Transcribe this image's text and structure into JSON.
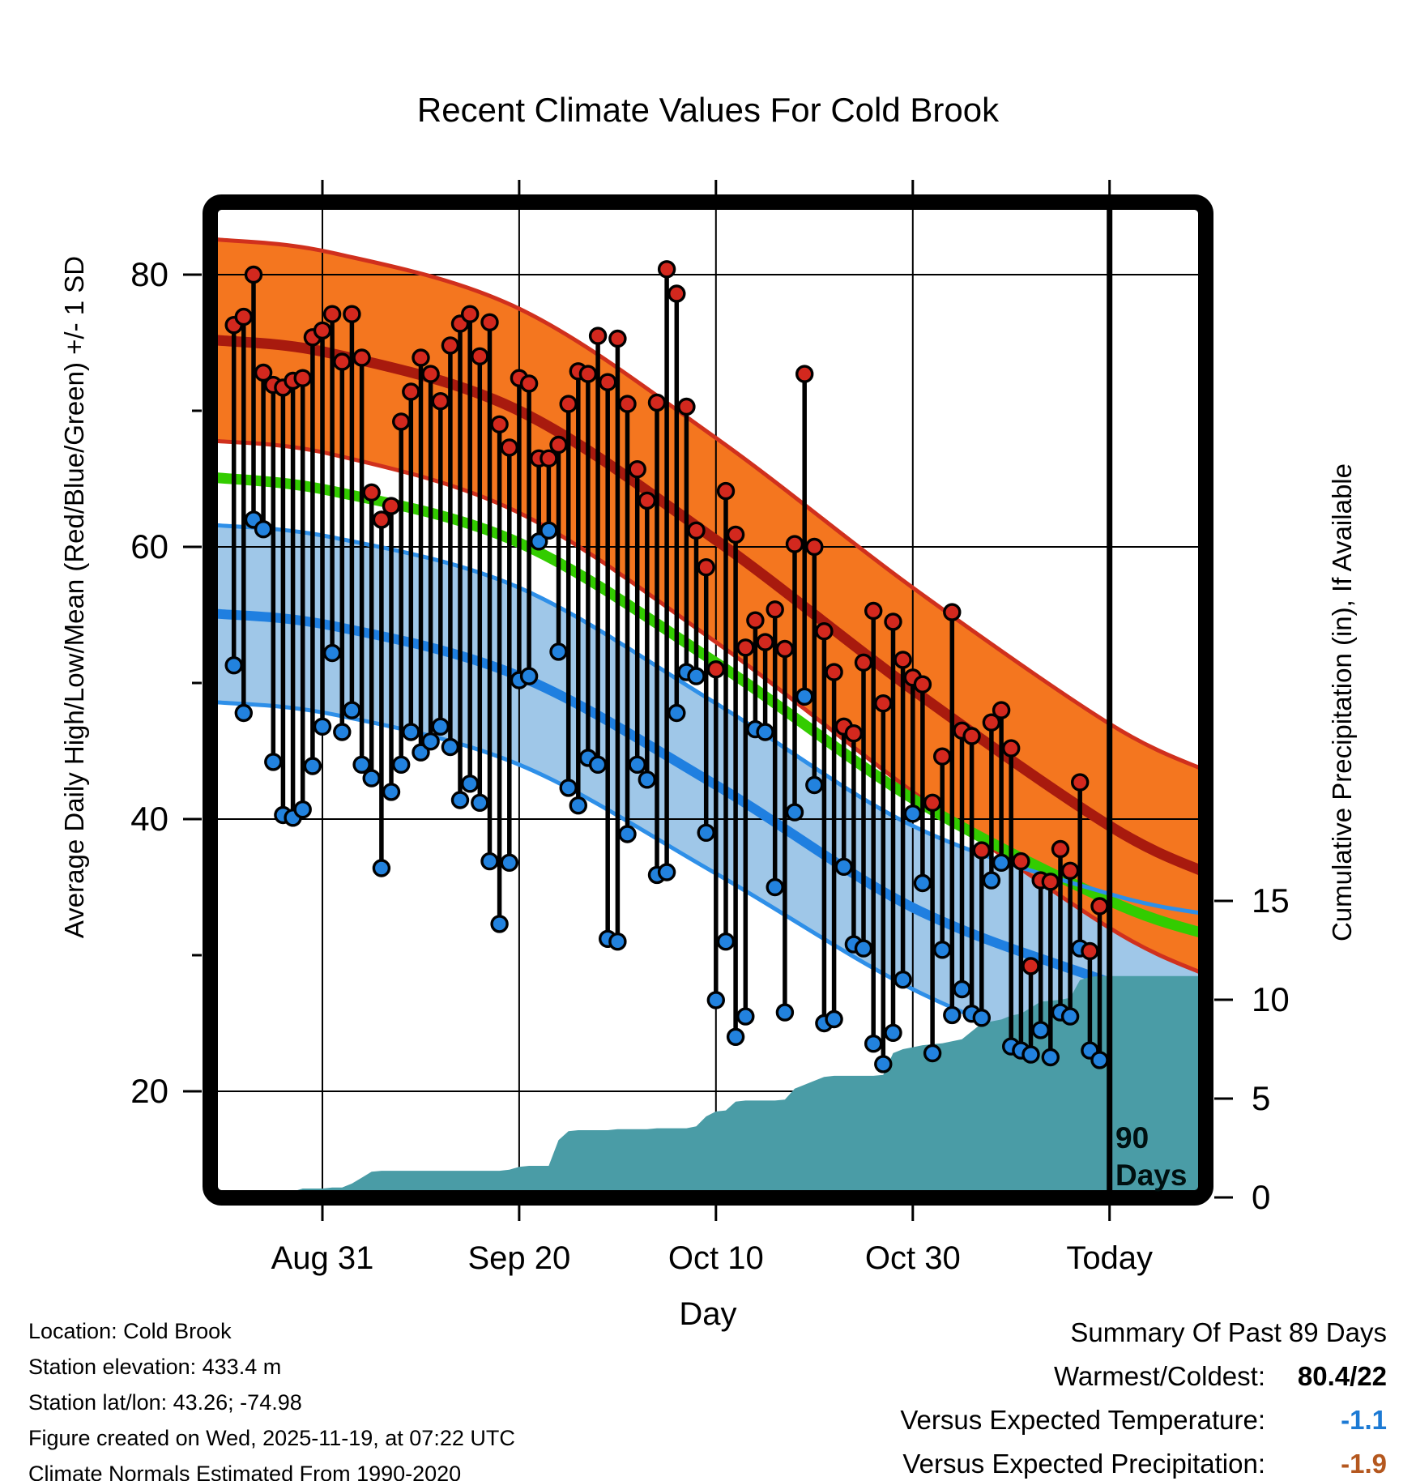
{
  "title": "Recent Climate Values For Cold Brook",
  "axes": {
    "y_left_label": "Average Daily High/Low/Mean (Red/Blue/Green) +/- 1 SD",
    "y_right_label": "Cumulative Precipitation (in), If Available",
    "x_label": "Day"
  },
  "annotation": {
    "line1": "90",
    "line2": "Days"
  },
  "footer": {
    "lines": [
      "Location: Cold Brook",
      "Station elevation: 433.4 m",
      "Station lat/lon: 43.26; -74.98",
      "Figure created on Wed, 2025-11-19, at 07:22 UTC",
      "Climate Normals Estimated From 1990-2020"
    ]
  },
  "summary": {
    "title": "Summary Of Past 89 Days",
    "rows": [
      {
        "label": "Warmest/Coldest:",
        "value": "80.4/22",
        "kind": "bold"
      },
      {
        "label": "Versus Expected Temperature:",
        "value": "-1.1",
        "kind": "temp"
      },
      {
        "label": "Versus Expected Precipitation:",
        "value": "-1.9",
        "kind": "precip"
      }
    ]
  },
  "colors": {
    "high_band": "#F4761F",
    "high_band_edge": "#D0301D",
    "high_mean_line": "#A81A0E",
    "mean_line": "#33CC00",
    "low_band": "#9FC7E8",
    "low_band_edge": "#2E8FE8",
    "low_mean_line": "#1F7FE0",
    "high_dot": "#D3281E",
    "low_dot": "#2282DE",
    "stem": "#000000",
    "precip_area": "#4A9CA6",
    "grid": "#000000",
    "temp_delta_value": "#1C7AD4",
    "precip_delta_value": "#B4571E"
  },
  "chart_data": {
    "type": "line",
    "subtype": "daily-high-low-stems + climate-normal-bands + cumulative-precip-area",
    "title": "Recent Climate Values For Cold Brook",
    "xlabel": "Day",
    "ylabel_left": "Average Daily High/Low/Mean (Red/Blue/Green) +/- 1 SD",
    "ylabel_right": "Cumulative Precipitation (in), If Available",
    "start_date": "2025-08-22",
    "n_days": 89,
    "today_day_index": 89,
    "x_ticks": [
      {
        "label": "Aug 31",
        "day": 9
      },
      {
        "label": "Sep 20",
        "day": 29
      },
      {
        "label": "Oct 10",
        "day": 49
      },
      {
        "label": "Oct 30",
        "day": 69
      },
      {
        "label": "Today",
        "day": 89
      }
    ],
    "y_left_ticks": [
      80,
      60,
      40,
      20
    ],
    "y_left_minor_ticks": [
      70,
      50,
      30
    ],
    "y_left_range": [
      12.7,
      84.8
    ],
    "y_right_ticks": [
      15,
      10,
      5,
      0
    ],
    "grid": true,
    "normals": {
      "days": [
        -2,
        10,
        29,
        49,
        69,
        89,
        99
      ],
      "high_upper": [
        82.6,
        81.6,
        77.5,
        68.0,
        57.0,
        47.0,
        43.5
      ],
      "high_mean": [
        75.2,
        74.2,
        70.0,
        60.5,
        49.5,
        39.5,
        36.0
      ],
      "high_lower": [
        67.8,
        66.8,
        62.5,
        53.0,
        42.0,
        32.0,
        28.5
      ],
      "mean": [
        65.1,
        64.1,
        60.3,
        51.5,
        41.5,
        34.0,
        31.5
      ],
      "low_upper": [
        61.6,
        60.7,
        57.0,
        48.5,
        39.5,
        34.5,
        33.0
      ],
      "low_mean": [
        55.1,
        54.2,
        50.5,
        42.5,
        33.5,
        28.0,
        25.5
      ],
      "low_lower": [
        48.6,
        47.7,
        44.0,
        36.0,
        27.5,
        21.5,
        18.0
      ]
    },
    "daily": {
      "high": [
        76.3,
        76.9,
        80.0,
        72.8,
        71.9,
        71.7,
        72.2,
        72.4,
        75.4,
        75.9,
        77.1,
        73.6,
        77.1,
        73.9,
        64.0,
        62.0,
        63.0,
        69.2,
        71.4,
        73.9,
        72.7,
        70.7,
        74.8,
        76.4,
        77.1,
        74.0,
        76.5,
        69.0,
        67.3,
        72.4,
        72.0,
        66.5,
        66.5,
        67.5,
        70.5,
        72.9,
        72.7,
        75.5,
        72.1,
        75.3,
        70.5,
        65.7,
        63.4,
        70.6,
        80.4,
        78.6,
        70.3,
        61.2,
        58.5,
        51.0,
        64.1,
        60.9,
        52.6,
        54.6,
        53.0,
        55.4,
        52.5,
        60.2,
        72.7,
        60.0,
        53.8,
        50.8,
        46.8,
        46.3,
        51.5,
        55.3,
        48.5,
        54.5,
        51.7,
        50.4,
        49.9,
        41.2,
        44.6,
        55.2,
        46.5,
        46.1,
        37.7,
        47.1,
        48.0,
        45.2,
        36.9,
        29.2,
        35.5,
        35.4,
        37.8,
        36.2,
        42.7,
        30.3,
        33.6
      ],
      "low": [
        51.3,
        47.8,
        62.0,
        61.3,
        44.2,
        40.3,
        40.1,
        40.7,
        43.9,
        46.8,
        52.2,
        46.4,
        48.0,
        44.0,
        43.0,
        36.4,
        42.0,
        44.0,
        46.4,
        44.9,
        45.7,
        46.8,
        45.3,
        41.4,
        42.6,
        41.2,
        36.9,
        32.3,
        36.8,
        50.2,
        50.5,
        60.4,
        61.2,
        52.3,
        42.3,
        41.0,
        44.5,
        44.0,
        31.2,
        31.0,
        38.9,
        44.0,
        42.9,
        35.9,
        36.1,
        47.8,
        50.8,
        50.5,
        39.0,
        26.7,
        31.0,
        24.0,
        25.5,
        46.6,
        46.4,
        35.0,
        25.8,
        40.5,
        49.0,
        42.5,
        25.0,
        25.3,
        36.5,
        30.8,
        30.5,
        23.5,
        22.0,
        24.3,
        28.2,
        40.4,
        35.3,
        22.8,
        30.4,
        25.6,
        27.5,
        25.7,
        25.4,
        35.5,
        36.8,
        23.3,
        23.0,
        22.7,
        24.5,
        22.5,
        25.8,
        25.5,
        30.5,
        23.0,
        22.3
      ]
    },
    "cumulative_precip_in": [
      0,
      0,
      0,
      0.05,
      0.1,
      0.1,
      0.3,
      0.45,
      0.45,
      0.45,
      0.5,
      0.5,
      0.7,
      1.0,
      1.3,
      1.35,
      1.35,
      1.35,
      1.35,
      1.35,
      1.35,
      1.35,
      1.35,
      1.35,
      1.35,
      1.35,
      1.35,
      1.35,
      1.4,
      1.55,
      1.6,
      1.6,
      1.6,
      2.9,
      3.35,
      3.4,
      3.4,
      3.4,
      3.4,
      3.45,
      3.45,
      3.45,
      3.45,
      3.5,
      3.5,
      3.5,
      3.5,
      3.6,
      4.1,
      4.35,
      4.4,
      4.85,
      4.9,
      4.9,
      4.9,
      4.9,
      4.95,
      5.5,
      5.7,
      5.9,
      6.1,
      6.15,
      6.15,
      6.15,
      6.15,
      6.15,
      6.2,
      7.3,
      7.5,
      7.6,
      7.7,
      7.75,
      7.8,
      7.9,
      8.0,
      8.4,
      8.8,
      8.9,
      9.0,
      9.2,
      9.3,
      9.6,
      9.9,
      9.95,
      10.0,
      10.1,
      11.0,
      11.15,
      11.2
    ],
    "summary_stats": {
      "period_days": 89,
      "warmest": 80.4,
      "coldest": 22,
      "vs_expected_temperature": -1.1,
      "vs_expected_precipitation": -1.9
    }
  }
}
